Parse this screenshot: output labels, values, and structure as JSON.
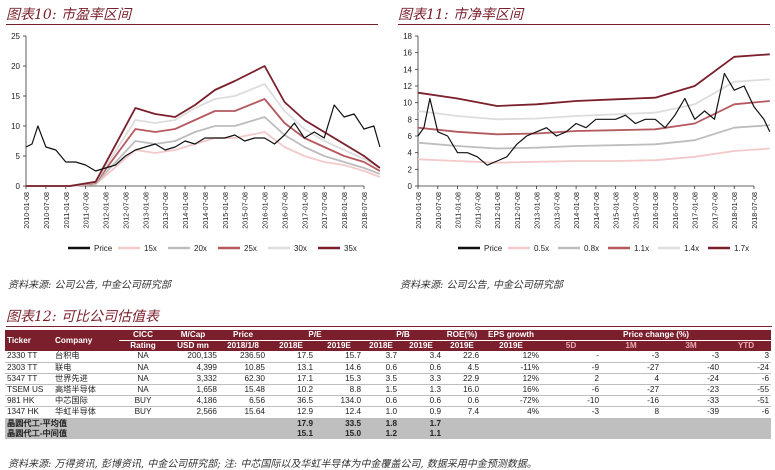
{
  "fig10": {
    "title": "图表10: 市盈率区间",
    "source": "资料来源: 公司公告, 中金公司研究部",
    "chart_data": {
      "type": "line",
      "ylim": [
        0,
        25
      ],
      "yticks": [
        "0",
        "5",
        "10",
        "15",
        "20",
        "25"
      ],
      "xticks": [
        "2010-01-08",
        "2010-07-08",
        "2011-01-08",
        "2011-07-08",
        "2012-01-08",
        "2012-07-08",
        "2013-01-08",
        "2013-07-08",
        "2014-01-08",
        "2014-07-08",
        "2015-01-08",
        "2015-07-08",
        "2016-01-08",
        "2016-07-08",
        "2017-01-08",
        "2017-07-08",
        "2018-01-08",
        "2018-07-08"
      ],
      "legend": [
        "Price",
        "15x",
        "20x",
        "25x",
        "30x",
        "35x"
      ],
      "series": [
        {
          "name": "Price",
          "color": "#111111",
          "points": [
            [
              0,
              6.5
            ],
            [
              0.3,
              7
            ],
            [
              0.6,
              10
            ],
            [
              1,
              6.5
            ],
            [
              1.5,
              6
            ],
            [
              2,
              4
            ],
            [
              2.5,
              4
            ],
            [
              3,
              3.5
            ],
            [
              3.5,
              2.5
            ],
            [
              4,
              3
            ],
            [
              4.5,
              3.5
            ],
            [
              5,
              5
            ],
            [
              5.5,
              6
            ],
            [
              6,
              6.5
            ],
            [
              6.5,
              7
            ],
            [
              7,
              6
            ],
            [
              7.5,
              6.5
            ],
            [
              8,
              7.5
            ],
            [
              8.5,
              7
            ],
            [
              9,
              8
            ],
            [
              9.5,
              8
            ],
            [
              10,
              8
            ],
            [
              10.5,
              8.5
            ],
            [
              11,
              7.5
            ],
            [
              11.5,
              8
            ],
            [
              12,
              8
            ],
            [
              12.5,
              7
            ],
            [
              13,
              8.5
            ],
            [
              13.5,
              10.5
            ],
            [
              14,
              8
            ],
            [
              14.5,
              9
            ],
            [
              15,
              8
            ],
            [
              15.5,
              13.5
            ],
            [
              16,
              11.5
            ],
            [
              16.5,
              12
            ],
            [
              17,
              9.5
            ],
            [
              17.5,
              10
            ],
            [
              17.8,
              6.5
            ]
          ]
        },
        {
          "name": "15x",
          "color": "#f3c9c9",
          "points": [
            [
              0,
              0
            ],
            [
              2.2,
              0
            ],
            [
              3.5,
              0.3
            ],
            [
              5.5,
              6
            ],
            [
              6.5,
              5.5
            ],
            [
              7.5,
              6
            ],
            [
              8.5,
              7
            ],
            [
              9.5,
              8
            ],
            [
              10.5,
              8
            ],
            [
              12,
              9
            ],
            [
              13,
              6.5
            ],
            [
              14,
              5
            ],
            [
              15,
              4
            ],
            [
              16,
              3.5
            ],
            [
              17,
              2.5
            ],
            [
              17.8,
              1.5
            ]
          ]
        },
        {
          "name": "20x",
          "color": "#bdbdbd",
          "points": [
            [
              0,
              0
            ],
            [
              2.2,
              0
            ],
            [
              3.5,
              0.4
            ],
            [
              5.5,
              7.5
            ],
            [
              6.5,
              7
            ],
            [
              7.5,
              7.5
            ],
            [
              8.5,
              9
            ],
            [
              9.5,
              10
            ],
            [
              10.5,
              10
            ],
            [
              12,
              11.5
            ],
            [
              13,
              8.5
            ],
            [
              14,
              6.5
            ],
            [
              15,
              5
            ],
            [
              16,
              4
            ],
            [
              17,
              3
            ],
            [
              17.8,
              2
            ]
          ]
        },
        {
          "name": "25x",
          "color": "#b5595f",
          "points": [
            [
              0,
              0
            ],
            [
              2.2,
              0
            ],
            [
              3.5,
              0.5
            ],
            [
              5.5,
              9.5
            ],
            [
              6.5,
              9
            ],
            [
              7.5,
              9.5
            ],
            [
              8.5,
              11
            ],
            [
              9.5,
              12.5
            ],
            [
              10.5,
              12.5
            ],
            [
              12,
              14.5
            ],
            [
              13,
              10.5
            ],
            [
              14,
              8
            ],
            [
              15,
              6.5
            ],
            [
              16,
              5
            ],
            [
              17,
              4
            ],
            [
              17.8,
              2.5
            ]
          ]
        },
        {
          "name": "30x",
          "color": "#dddddd",
          "points": [
            [
              0,
              0
            ],
            [
              2.2,
              0
            ],
            [
              3.5,
              0.6
            ],
            [
              5.5,
              11
            ],
            [
              6.5,
              10.5
            ],
            [
              7.5,
              11
            ],
            [
              8.5,
              13
            ],
            [
              9.5,
              14.5
            ],
            [
              10.5,
              15
            ],
            [
              12,
              17
            ],
            [
              13,
              12.5
            ],
            [
              14,
              9.5
            ],
            [
              15,
              7.5
            ],
            [
              16,
              6
            ],
            [
              17,
              4.5
            ],
            [
              17.8,
              3
            ]
          ]
        },
        {
          "name": "35x",
          "color": "#7a1f2b",
          "points": [
            [
              0,
              0
            ],
            [
              2.2,
              0
            ],
            [
              3.5,
              0.7
            ],
            [
              5.5,
              13
            ],
            [
              6.5,
              12
            ],
            [
              7.5,
              11.5
            ],
            [
              8.5,
              13.5
            ],
            [
              9.5,
              16
            ],
            [
              10.5,
              17.5
            ],
            [
              12,
              20
            ],
            [
              13,
              14
            ],
            [
              14,
              11
            ],
            [
              15,
              9
            ],
            [
              16,
              7
            ],
            [
              17,
              5
            ],
            [
              17.8,
              3
            ]
          ]
        }
      ]
    }
  },
  "fig11": {
    "title": "图表11: 市净率区间",
    "source": "资料来源: 公司公告, 中金公司研究部",
    "chart_data": {
      "type": "line",
      "ylim": [
        0,
        18
      ],
      "yticks": [
        "0",
        "2",
        "4",
        "6",
        "8",
        "10",
        "12",
        "14",
        "16",
        "18"
      ],
      "xticks": [
        "2010-01-08",
        "2010-07-08",
        "2011-01-08",
        "2011-07-08",
        "2012-01-08",
        "2012-07-08",
        "2013-01-08",
        "2013-07-08",
        "2014-01-08",
        "2014-07-08",
        "2015-01-08",
        "2015-07-08",
        "2016-01-08",
        "2016-07-08",
        "2017-01-08",
        "2017-07-08",
        "2018-01-08",
        "2018-07-08"
      ],
      "legend": [
        "Price",
        "0.5x",
        "0.8x",
        "1.1x",
        "1.4x",
        "1.7x"
      ],
      "series": [
        {
          "name": "Price",
          "color": "#111111",
          "points": [
            [
              0,
              6
            ],
            [
              0.3,
              7
            ],
            [
              0.6,
              10.5
            ],
            [
              1,
              6.5
            ],
            [
              1.5,
              6
            ],
            [
              2,
              4
            ],
            [
              2.5,
              4
            ],
            [
              3,
              3.5
            ],
            [
              3.5,
              2.5
            ],
            [
              4,
              3
            ],
            [
              4.5,
              3.5
            ],
            [
              5,
              5
            ],
            [
              5.5,
              6
            ],
            [
              6,
              6.5
            ],
            [
              6.5,
              7
            ],
            [
              7,
              6
            ],
            [
              7.5,
              6.5
            ],
            [
              8,
              7.5
            ],
            [
              8.5,
              7
            ],
            [
              9,
              8
            ],
            [
              9.5,
              8
            ],
            [
              10,
              8
            ],
            [
              10.5,
              8.5
            ],
            [
              11,
              7.5
            ],
            [
              11.5,
              8
            ],
            [
              12,
              8
            ],
            [
              12.5,
              7
            ],
            [
              13,
              8.5
            ],
            [
              13.5,
              10.5
            ],
            [
              14,
              8
            ],
            [
              14.5,
              9
            ],
            [
              15,
              8
            ],
            [
              15.5,
              13.5
            ],
            [
              16,
              11.5
            ],
            [
              16.5,
              12
            ],
            [
              17,
              9.5
            ],
            [
              17.5,
              8
            ],
            [
              17.8,
              6.5
            ]
          ]
        },
        {
          "name": "0.5x",
          "color": "#f3c9c9",
          "points": [
            [
              0,
              3.2
            ],
            [
              2,
              3
            ],
            [
              4,
              2.8
            ],
            [
              6,
              2.9
            ],
            [
              8,
              3
            ],
            [
              10,
              3
            ],
            [
              12,
              3.1
            ],
            [
              14,
              3.5
            ],
            [
              16,
              4.2
            ],
            [
              17.8,
              4.5
            ]
          ]
        },
        {
          "name": "0.8x",
          "color": "#bdbdbd",
          "points": [
            [
              0,
              5.2
            ],
            [
              2,
              4.8
            ],
            [
              4,
              4.5
            ],
            [
              6,
              4.6
            ],
            [
              8,
              4.8
            ],
            [
              10,
              4.9
            ],
            [
              12,
              5
            ],
            [
              14,
              5.5
            ],
            [
              16,
              7
            ],
            [
              17.8,
              7.3
            ]
          ]
        },
        {
          "name": "1.1x",
          "color": "#b5595f",
          "points": [
            [
              0,
              7
            ],
            [
              2,
              6.5
            ],
            [
              4,
              6.2
            ],
            [
              6,
              6.3
            ],
            [
              8,
              6.6
            ],
            [
              10,
              6.7
            ],
            [
              12,
              6.8
            ],
            [
              14,
              7.5
            ],
            [
              16,
              9.8
            ],
            [
              17.8,
              10.2
            ]
          ]
        },
        {
          "name": "1.4x",
          "color": "#dddddd",
          "points": [
            [
              0,
              9
            ],
            [
              2,
              8.4
            ],
            [
              4,
              8
            ],
            [
              6,
              8.1
            ],
            [
              8,
              8.4
            ],
            [
              10,
              8.6
            ],
            [
              12,
              8.8
            ],
            [
              14,
              9.8
            ],
            [
              16,
              12.5
            ],
            [
              17.8,
              12.8
            ]
          ]
        },
        {
          "name": "1.7x",
          "color": "#7a1f2b",
          "points": [
            [
              0,
              11.2
            ],
            [
              2,
              10.5
            ],
            [
              4,
              9.6
            ],
            [
              6,
              9.8
            ],
            [
              8,
              10.2
            ],
            [
              10,
              10.4
            ],
            [
              12,
              10.6
            ],
            [
              14,
              12
            ],
            [
              16,
              15.5
            ],
            [
              17.8,
              15.8
            ]
          ]
        }
      ]
    }
  },
  "fig12": {
    "title": "图表12: 可比公司估值表",
    "source": "资料来源: 万得资讯, 彭博资讯, 中金公司研究部; 注: 中芯国际以及华虹半导体为中金覆盖公司, 数据采用中金预测数据。",
    "headers": {
      "ticker": "Ticker",
      "company": "Company",
      "cicc": "CICC",
      "rating": "Rating",
      "mcap": "M/Cap",
      "usdmn": "USD mn",
      "price": "Price",
      "pricedate": "2018/1/8",
      "pe": "P/E",
      "pb": "P/B",
      "roe": "ROE(%)",
      "eps": "EPS growth",
      "pc": "Price change (%)",
      "pe18": "2018E",
      "pe19": "2019E",
      "pb18": "2018E",
      "pb19": "2019E",
      "roe19": "2019E",
      "eps19": "2019E",
      "d5": "5D",
      "m1": "1M",
      "m3": "3M",
      "ytd": "YTD"
    },
    "rows": [
      [
        "2330 TT",
        "台积电",
        "NA",
        "200,135",
        "236.50",
        "17.5",
        "15.7",
        "3.7",
        "3.4",
        "22.6",
        "12%",
        "-",
        "-3",
        "-3",
        "3"
      ],
      [
        "2303 TT",
        "联电",
        "NA",
        "4,399",
        "10.85",
        "13.1",
        "14.6",
        "0.6",
        "0.6",
        "4.5",
        "-11%",
        "-9",
        "-27",
        "-40",
        "-24"
      ],
      [
        "5347 TT",
        "世界先进",
        "NA",
        "3,332",
        "62.30",
        "17.1",
        "15.3",
        "3.5",
        "3.3",
        "22.9",
        "12%",
        "2",
        "4",
        "-24",
        "-6"
      ],
      [
        "TSEM US",
        "高塔半导体",
        "NA",
        "1,658",
        "15.48",
        "10.2",
        "8.8",
        "1.5",
        "1.3",
        "16.0",
        "16%",
        "-6",
        "-27",
        "-23",
        "-55"
      ],
      [
        "981 HK",
        "中芯国际",
        "BUY",
        "4,186",
        "6.56",
        "36.5",
        "134.0",
        "0.6",
        "0.6",
        "0.6",
        "-72%",
        "-10",
        "-16",
        "-33",
        "-51"
      ],
      [
        "1347 HK",
        "华虹半导体",
        "BUY",
        "2,566",
        "15.64",
        "12.9",
        "12.4",
        "1.0",
        "0.9",
        "7.4",
        "4%",
        "-3",
        "8",
        "-39",
        "-6"
      ]
    ],
    "avg": [
      {
        "label": "晶圆代工-平均值",
        "pe18": "17.9",
        "pe19": "33.5",
        "pb18": "1.8",
        "pb19": "1.7"
      },
      {
        "label": "晶圆代工-中间值",
        "pe18": "15.1",
        "pe19": "15.0",
        "pb18": "1.2",
        "pb19": "1.1"
      }
    ]
  }
}
